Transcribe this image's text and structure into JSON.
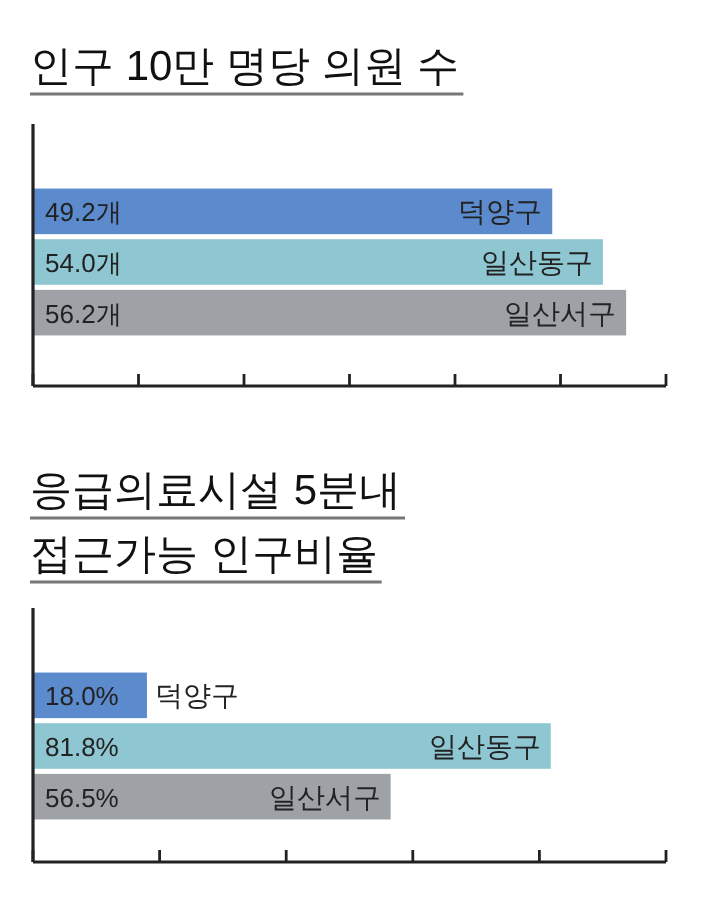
{
  "chart_data": [
    {
      "type": "bar",
      "orientation": "horizontal",
      "title": "인구 10만 명당 의원 수",
      "categories": [
        "덕양구",
        "일산동구",
        "일산서구"
      ],
      "values": [
        49.2,
        54.0,
        56.2
      ],
      "value_labels": [
        "49.2개",
        "54.0개",
        "56.2개"
      ],
      "colors": [
        "#5b8bcd",
        "#8ec6d2",
        "#9ea1a6"
      ]
    },
    {
      "type": "bar",
      "orientation": "horizontal",
      "title": "응급의료시설 5분내\n접근가능 인구비율",
      "categories": [
        "덕양구",
        "일산동구",
        "일산서구"
      ],
      "values": [
        18.0,
        81.8,
        56.5
      ],
      "value_labels": [
        "18.0%",
        "81.8%",
        "56.5%"
      ],
      "colors": [
        "#5b8bcd",
        "#8ec6d2",
        "#9ea1a6"
      ]
    }
  ]
}
